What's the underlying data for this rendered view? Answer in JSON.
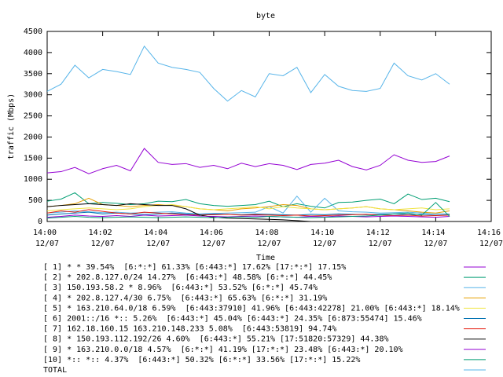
{
  "chart_data": {
    "type": "line",
    "title": "byte",
    "x_label": "Time",
    "y_label": "traffic (Mbps)",
    "xlim": [
      0,
      16
    ],
    "ylim": [
      0,
      4500
    ],
    "xticks": [
      {
        "value": 0,
        "label": "14:00 12/07"
      },
      {
        "value": 2,
        "label": "14:02 12/07"
      },
      {
        "value": 4,
        "label": "14:04 12/07"
      },
      {
        "value": 6,
        "label": "14:06 12/07"
      },
      {
        "value": 8,
        "label": "14:08 12/07"
      },
      {
        "value": 10,
        "label": "14:10 12/07"
      },
      {
        "value": 12,
        "label": "14:12 12/07"
      },
      {
        "value": 14,
        "label": "14:14 12/07"
      },
      {
        "value": 16,
        "label": "14:16 12/07"
      }
    ],
    "yticks": [
      0,
      500,
      1000,
      1500,
      2000,
      2500,
      3000,
      3500,
      4000,
      4500
    ],
    "grid": false,
    "x": [
      0,
      0.5,
      1,
      1.5,
      2,
      2.5,
      3,
      3.5,
      4,
      4.5,
      5,
      5.5,
      6,
      6.5,
      7,
      7.5,
      8,
      8.5,
      9,
      9.5,
      10,
      10.5,
      11,
      11.5,
      12,
      12.5,
      13,
      13.5,
      14,
      14.5
    ],
    "series": [
      {
        "name": "[ 1] * * 39.54%  [6:*:*] 61.33% [6:443:*] 17.62% [17:*:*] 17.15%",
        "color": "#9400d3",
        "values": [
          1150,
          1180,
          1280,
          1130,
          1250,
          1330,
          1200,
          1730,
          1400,
          1350,
          1370,
          1280,
          1330,
          1250,
          1380,
          1300,
          1370,
          1330,
          1230,
          1350,
          1380,
          1450,
          1300,
          1220,
          1330,
          1580,
          1450,
          1400,
          1420,
          1550
        ]
      },
      {
        "name": "[ 2] * 202.8.127.0/24 14.27%  [6:443:*] 48.58% [6:*:*] 44.45%",
        "color": "#009e73",
        "values": [
          480,
          530,
          680,
          420,
          450,
          430,
          400,
          420,
          480,
          470,
          520,
          420,
          380,
          360,
          380,
          400,
          480,
          350,
          420,
          360,
          320,
          450,
          460,
          500,
          530,
          420,
          650,
          520,
          550,
          470
        ]
      },
      {
        "name": "[ 3] 150.193.58.2 * 8.96%  [6:443:*] 53.52% [6:*:*] 45.74%",
        "color": "#56b4e9",
        "values": [
          200,
          220,
          250,
          230,
          210,
          220,
          200,
          210,
          220,
          230,
          200,
          180,
          190,
          200,
          210,
          220,
          350,
          200,
          600,
          220,
          550,
          250,
          230,
          220,
          200,
          210,
          220,
          200,
          190,
          180
        ]
      },
      {
        "name": "[ 4] * 202.8.127.4/30 6.75%  [6:443:*] 65.63% [6:*:*] 31.19%",
        "color": "#e69f00",
        "values": [
          350,
          380,
          420,
          550,
          400,
          380,
          350,
          380,
          400,
          380,
          350,
          300,
          280,
          250,
          300,
          320,
          350,
          400,
          380,
          300,
          280,
          300,
          320,
          350,
          300,
          280,
          250,
          220,
          200,
          250
        ]
      },
      {
        "name": "[ 5] * 163.210.64.0/18 6.59%  [6:443:37910] 41.96% [6:443:42278] 21.00% [6:443:*] 18.14%",
        "color": "#f0e442",
        "values": [
          250,
          280,
          300,
          320,
          300,
          280,
          300,
          350,
          380,
          400,
          350,
          300,
          280,
          300,
          320,
          350,
          300,
          350,
          320,
          300,
          280,
          300,
          320,
          350,
          300,
          280,
          300,
          320,
          280,
          300
        ]
      },
      {
        "name": "[ 6] 2001::/16 *:: 5.26%  [6:443:*] 45.04% [6:443:*] 24.35% [6:873:55474] 15.46%",
        "color": "#0072b2",
        "values": [
          150,
          180,
          200,
          220,
          180,
          200,
          180,
          160,
          180,
          200,
          180,
          160,
          180,
          170,
          160,
          180,
          170,
          160,
          150,
          170,
          160,
          180,
          170,
          160,
          170,
          180,
          160,
          170,
          150,
          160
        ]
      },
      {
        "name": "[ 7] 162.18.160.15 163.210.148.233 5.08%  [6:443:53819] 94.74%",
        "color": "#e51e10",
        "values": [
          200,
          250,
          220,
          280,
          240,
          200,
          180,
          220,
          200,
          180,
          160,
          150,
          160,
          170,
          150,
          160,
          150,
          140,
          150,
          130,
          140,
          150,
          160,
          170,
          150,
          140,
          150,
          130,
          140,
          150
        ]
      },
      {
        "name": "[ 8] * 150.193.112.192/26 4.60%  [6:443:*] 55.21% [17:51820:57329] 44.38%",
        "color": "#000000",
        "values": [
          350,
          380,
          400,
          420,
          400,
          380,
          420,
          400,
          380,
          380,
          300,
          150,
          100,
          80,
          70,
          60,
          50,
          40,
          20,
          0,
          null,
          null,
          null,
          null,
          null,
          null,
          null,
          null,
          null,
          null
        ]
      },
      {
        "name": "[ 9] * 163.210.0.0/18 4.57%  [6:*:*] 41.19% [17:*:*] 23.48% [6:443:*] 20.10%",
        "color": "#9400d3",
        "values": [
          100,
          120,
          150,
          130,
          120,
          140,
          120,
          150,
          130,
          140,
          150,
          130,
          120,
          110,
          120,
          130,
          120,
          110,
          100,
          120,
          110,
          130,
          120,
          110,
          120,
          130,
          120,
          110,
          100,
          120
        ]
      },
      {
        "name": "[10] *:: *:: 4.37%  [6:443:*] 50.32% [6:*:*] 33.56% [17:*:*] 15.22%",
        "color": "#009e73",
        "values": [
          80,
          100,
          120,
          100,
          90,
          100,
          110,
          100,
          90,
          100,
          110,
          100,
          90,
          100,
          110,
          100,
          120,
          110,
          100,
          90,
          100,
          110,
          120,
          130,
          150,
          180,
          200,
          150,
          450,
          120
        ]
      },
      {
        "name": "TOTAL",
        "color": "#56b4e9",
        "values": [
          3080,
          3250,
          3700,
          3400,
          3600,
          3550,
          3480,
          4150,
          3750,
          3650,
          3600,
          3530,
          3150,
          2850,
          3100,
          2950,
          3500,
          3450,
          3650,
          3050,
          3480,
          3200,
          3100,
          3080,
          3150,
          3750,
          3450,
          3350,
          3500,
          3250
        ]
      }
    ]
  }
}
